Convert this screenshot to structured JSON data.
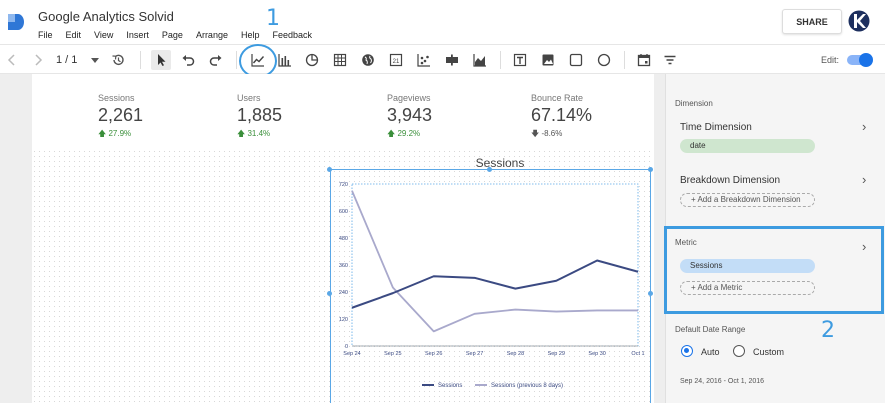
{
  "app": {
    "title": "Google Analytics Solvid",
    "share_label": "SHARE"
  },
  "menu": [
    "File",
    "Edit",
    "View",
    "Insert",
    "Page",
    "Arrange",
    "Help",
    "Feedback"
  ],
  "toolbar": {
    "page_indicator": "1 / 1",
    "edit_label": "Edit:",
    "edit_on": true
  },
  "annotations": {
    "one": "1",
    "two": "2"
  },
  "scorecards": [
    {
      "label": "Sessions",
      "value": "2,261",
      "delta": "27.9%",
      "direction": "up"
    },
    {
      "label": "Users",
      "value": "1,885",
      "delta": "31.4%",
      "direction": "up"
    },
    {
      "label": "Pageviews",
      "value": "3,943",
      "delta": "29.2%",
      "direction": "up"
    },
    {
      "label": "Bounce Rate",
      "value": "67.14%",
      "delta": "-8.6%",
      "direction": "down"
    }
  ],
  "chart_data": {
    "type": "line",
    "title": "Sessions",
    "x": [
      "Sep 24",
      "Sep 25",
      "Sep 26",
      "Sep 27",
      "Sep 28",
      "Sep 29",
      "Sep 30",
      "Oct 1"
    ],
    "yticks": [
      "0",
      "120",
      "240",
      "360",
      "480",
      "600",
      "720"
    ],
    "ylim": [
      0,
      720
    ],
    "series": [
      {
        "name": "Sessions",
        "color": "#3b4a82",
        "values": [
          170,
          235,
          310,
          303,
          255,
          290,
          380,
          330
        ]
      },
      {
        "name": "Sessions (previous 8 days)",
        "color": "#a9a9cc",
        "values": [
          690,
          260,
          65,
          143,
          162,
          153,
          158,
          158
        ]
      }
    ],
    "legend": "bottom"
  },
  "panel": {
    "dimension_label": "Dimension",
    "time_dimension_label": "Time Dimension",
    "time_dimension_value": "date",
    "breakdown_label": "Breakdown Dimension",
    "add_breakdown": "+ Add a Breakdown Dimension",
    "metric_label": "Metric",
    "metric_value": "Sessions",
    "add_metric": "+ Add a Metric",
    "date_range_label": "Default Date Range",
    "auto_label": "Auto",
    "custom_label": "Custom",
    "date_range_value": "Sep 24, 2016 - Oct 1, 2016"
  }
}
